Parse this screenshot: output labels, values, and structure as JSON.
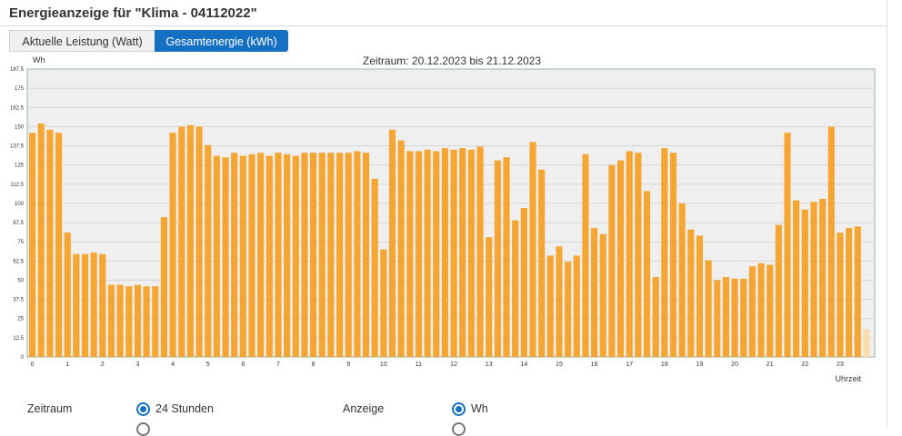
{
  "header": {
    "title": "Energieanzeige für \"Klima - 04112022\""
  },
  "tabs": [
    {
      "label": "Aktuelle Leistung (Watt)",
      "active": false
    },
    {
      "label": "Gesamtenergie (kWh)",
      "active": true
    }
  ],
  "period_text": "Zeitraum: 20.12.2023 bis 21.12.2023",
  "controls": {
    "zeitraum_label": "Zeitraum",
    "zeitraum_selected": "24 Stunden",
    "anzeige_label": "Anzeige",
    "anzeige_selected": "Wh"
  },
  "colors": {
    "bar": "#f5a632",
    "bar_faded": "#f9dcaf",
    "accent": "#1670c2",
    "plot_bg": "#efefef"
  },
  "chart_data": {
    "type": "bar",
    "ylabel": "Wh",
    "xlabel": "Uhrzeit",
    "ylim": [
      0,
      187.5
    ],
    "yticks": [
      "0",
      "12.5",
      "25",
      "37.5",
      "50",
      "62.5",
      "75",
      "87.5",
      "100",
      "112.5",
      "125",
      "137.5",
      "150",
      "162.5",
      "175",
      "187.5"
    ],
    "xticks": [
      "0",
      "1",
      "2",
      "3",
      "4",
      "5",
      "6",
      "7",
      "8",
      "9",
      "10",
      "11",
      "12",
      "13",
      "14",
      "15",
      "16",
      "17",
      "18",
      "19",
      "20",
      "21",
      "22",
      "23"
    ],
    "grid": true,
    "values": [
      146,
      152,
      148,
      146,
      81,
      67,
      67,
      68,
      67,
      47,
      47,
      46,
      47,
      46,
      46,
      91,
      146,
      150,
      151,
      150,
      138,
      131,
      130,
      133,
      131,
      132,
      133,
      131,
      133,
      132,
      131,
      133,
      133,
      133,
      133,
      133,
      133,
      134,
      133,
      116,
      70,
      148,
      141,
      134,
      134,
      135,
      134,
      136,
      135,
      136,
      135,
      137,
      78,
      128,
      130,
      89,
      97,
      140,
      122,
      66,
      72,
      62,
      66,
      132,
      84,
      80,
      125,
      128,
      134,
      133,
      108,
      52,
      136,
      133,
      100,
      83,
      79,
      63,
      50,
      52,
      51,
      51,
      59,
      61,
      60,
      86,
      146,
      102,
      96,
      101,
      103,
      150,
      81,
      84,
      85,
      18
    ],
    "faded_last": true
  }
}
